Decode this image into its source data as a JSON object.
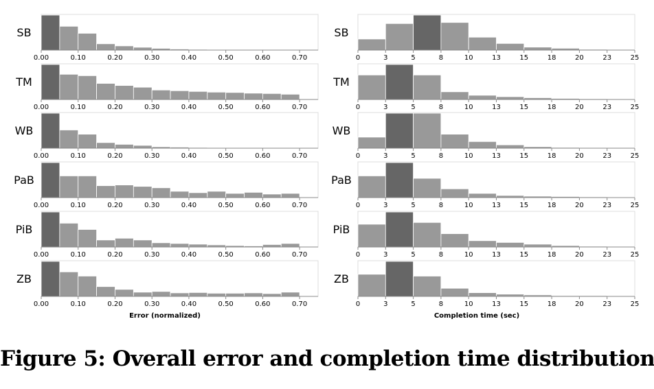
{
  "caption": "Figure 5: Overall error and completion time distributions.",
  "colors": {
    "bar": "#999999",
    "highlight": "#666666",
    "axis": "#888888",
    "frame": "#dddddd"
  },
  "chart_data": [
    {
      "type": "bar",
      "xlabel": "Error (normalized)",
      "xlim": [
        0,
        0.75
      ],
      "bin_width": 0.05,
      "bin_starts": [
        0.0,
        0.05,
        0.1,
        0.15,
        0.2,
        0.25,
        0.3,
        0.35,
        0.4,
        0.45,
        0.5,
        0.55,
        0.6,
        0.65,
        0.7
      ],
      "tick_values": [
        0.0,
        0.1,
        0.2,
        0.3,
        0.4,
        0.5,
        0.6,
        0.7
      ],
      "tick_labels": [
        "0.00",
        "0.10",
        "0.20",
        "0.30",
        "0.40",
        "0.50",
        "0.60",
        "0.70"
      ],
      "highlight_bin": 0,
      "row_labels": [
        "SB",
        "TM",
        "WB",
        "PaB",
        "PiB",
        "ZB"
      ],
      "series": [
        {
          "name": "SB",
          "values": [
            1.0,
            0.68,
            0.48,
            0.18,
            0.12,
            0.08,
            0.05,
            0.03,
            0.02,
            0.01,
            0.01,
            0.01,
            0.01,
            0.01,
            0
          ]
        },
        {
          "name": "TM",
          "values": [
            1.0,
            0.72,
            0.68,
            0.46,
            0.4,
            0.35,
            0.27,
            0.25,
            0.23,
            0.21,
            0.2,
            0.18,
            0.17,
            0.15,
            0
          ]
        },
        {
          "name": "WB",
          "values": [
            1.0,
            0.52,
            0.4,
            0.16,
            0.11,
            0.08,
            0.04,
            0.03,
            0.02,
            0.01,
            0.01,
            0.01,
            0.01,
            0.01,
            0
          ]
        },
        {
          "name": "PaB",
          "values": [
            1.0,
            0.62,
            0.62,
            0.34,
            0.36,
            0.32,
            0.28,
            0.18,
            0.14,
            0.18,
            0.12,
            0.15,
            0.1,
            0.12,
            0
          ]
        },
        {
          "name": "PiB",
          "values": [
            1.0,
            0.68,
            0.5,
            0.2,
            0.25,
            0.2,
            0.12,
            0.1,
            0.08,
            0.06,
            0.04,
            0.03,
            0.07,
            0.1,
            0
          ]
        },
        {
          "name": "ZB",
          "values": [
            1.0,
            0.7,
            0.58,
            0.28,
            0.2,
            0.12,
            0.14,
            0.1,
            0.11,
            0.09,
            0.09,
            0.1,
            0.08,
            0.12,
            0
          ]
        }
      ]
    },
    {
      "type": "bar",
      "xlabel": "Completion time (sec)",
      "xlim": [
        0,
        25
      ],
      "bin_width": 2.5,
      "bin_starts": [
        0,
        2.5,
        5,
        7.5,
        10,
        12.5,
        15,
        17.5,
        20,
        22.5
      ],
      "tick_values": [
        0,
        2.5,
        5,
        7.5,
        10,
        12.5,
        15,
        17.5,
        20,
        22.5,
        25
      ],
      "tick_labels": [
        "0",
        "3",
        "5",
        "8",
        "10",
        "13",
        "15",
        "18",
        "20",
        "23",
        "25"
      ],
      "highlight_bins": [
        2,
        1,
        1,
        1,
        1,
        1
      ],
      "row_labels": [
        "SB",
        "TM",
        "WB",
        "PaB",
        "PiB",
        "ZB"
      ],
      "series": [
        {
          "name": "SB",
          "values": [
            0.3,
            0.72,
            0.95,
            0.75,
            0.35,
            0.18,
            0.08,
            0.05,
            0.02,
            0.01
          ]
        },
        {
          "name": "TM",
          "values": [
            0.7,
            1.0,
            0.7,
            0.22,
            0.12,
            0.08,
            0.05,
            0.03,
            0.02,
            0.01
          ]
        },
        {
          "name": "WB",
          "values": [
            0.3,
            0.95,
            0.95,
            0.38,
            0.18,
            0.09,
            0.04,
            0.02,
            0.01,
            0.01
          ]
        },
        {
          "name": "PaB",
          "values": [
            0.62,
            1.0,
            0.55,
            0.25,
            0.12,
            0.06,
            0.04,
            0.03,
            0.02,
            0.01
          ]
        },
        {
          "name": "PiB",
          "values": [
            0.65,
            1.0,
            0.7,
            0.38,
            0.18,
            0.13,
            0.08,
            0.04,
            0.02,
            0.01
          ]
        },
        {
          "name": "ZB",
          "values": [
            0.6,
            0.95,
            0.55,
            0.22,
            0.1,
            0.06,
            0.04,
            0.02,
            0.02,
            0.01
          ]
        }
      ]
    }
  ]
}
